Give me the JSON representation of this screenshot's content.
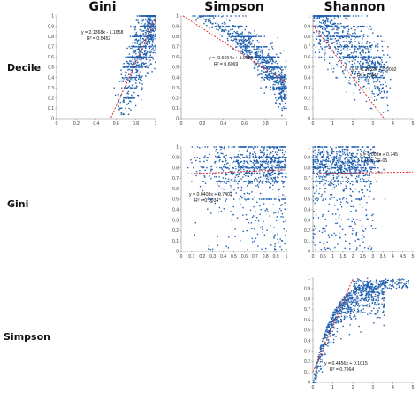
{
  "column_titles": [
    "Gini",
    "Simpson",
    "Shannon"
  ],
  "row_titles": [
    "Decile",
    "Gini",
    "Simpson"
  ],
  "colors": {
    "points": "#2060b0",
    "trend": "#e0302a",
    "axis": "#888888"
  },
  "chart_data": [
    {
      "id": "decile-vs-gini",
      "type": "scatter",
      "title": "",
      "xlabel": "",
      "ylabel": "",
      "xlim": [
        0,
        1
      ],
      "ylim": [
        0,
        1
      ],
      "xticks": [
        "0",
        "0.2",
        "0.4",
        "0.6",
        "0.8",
        "1"
      ],
      "yticks": [
        "0",
        "0.1",
        "0.2",
        "0.3",
        "0.4",
        "0.5",
        "0.6",
        "0.7",
        "0.8",
        "0.9",
        "1"
      ],
      "pattern": "gini",
      "trend": {
        "slope": 2.1368,
        "intercept": -1.1658
      },
      "equation": "y = 2.1368x - 1.1658",
      "r2": "R² = 0.5452",
      "grid": false
    },
    {
      "id": "decile-vs-simpson",
      "type": "scatter",
      "title": "",
      "xlabel": "",
      "ylabel": "",
      "xlim": [
        0,
        1
      ],
      "ylim": [
        0,
        1
      ],
      "xticks": [
        "0",
        "0.2",
        "0.4",
        "0.6",
        "0.8",
        "1"
      ],
      "yticks": [
        "0",
        "0.1",
        "0.2",
        "0.3",
        "0.4",
        "0.5",
        "0.6",
        "0.7",
        "0.8",
        "0.9",
        "1"
      ],
      "pattern": "simpson",
      "trend": {
        "slope": -0.6604,
        "intercept": 1.0125
      },
      "equation": "y = -0.6604x + 1.0125",
      "r2": "R² = 0.6069",
      "grid": false
    },
    {
      "id": "decile-vs-shannon",
      "type": "scatter",
      "title": "",
      "xlabel": "",
      "ylabel": "",
      "xlim": [
        0,
        5
      ],
      "ylim": [
        0,
        1
      ],
      "xticks": [
        "0",
        "1",
        "2",
        "3",
        "4",
        "5"
      ],
      "yticks": [
        "0",
        "0.1",
        "0.2",
        "0.3",
        "0.4",
        "0.5",
        "0.6",
        "0.7",
        "0.8",
        "0.9",
        "1"
      ],
      "pattern": "shannon",
      "trend": {
        "slope": -0.2552,
        "intercept": 0.9092
      },
      "equation": "y = -0.2552x + 0.9092",
      "r2": "R² = 0.447",
      "grid": false
    },
    {
      "id": "gini-vs-simpson",
      "type": "scatter",
      "title": "",
      "xlabel": "",
      "ylabel": "",
      "xlim": [
        0,
        1
      ],
      "ylim": [
        0,
        1
      ],
      "xticks": [
        "0",
        "0.1",
        "0.2",
        "0.3",
        "0.4",
        "0.5",
        "0.6",
        "0.7",
        "0.8",
        "0.9",
        "1"
      ],
      "yticks": [
        "0",
        "0.1",
        "0.2",
        "0.3",
        "0.4",
        "0.5",
        "0.6",
        "0.7",
        "0.8",
        "0.9",
        "1"
      ],
      "pattern": "flat_high",
      "trend": {
        "slope": 0.0408,
        "intercept": 0.7402
      },
      "equation": "y = 0.0408x + 0.7402",
      "r2": "R² = 0.0034",
      "grid": false
    },
    {
      "id": "gini-vs-shannon",
      "type": "scatter",
      "title": "",
      "xlabel": "",
      "ylabel": "",
      "xlim": [
        0,
        5
      ],
      "ylim": [
        0,
        1
      ],
      "xticks": [
        "0",
        "0.5",
        "1",
        "1.5",
        "2",
        "2.5",
        "3",
        "3.5",
        "4",
        "4.5",
        "5"
      ],
      "yticks": [
        "0",
        "0.1",
        "0.2",
        "0.3",
        "0.4",
        "0.5",
        "0.6",
        "0.7",
        "0.8",
        "0.9",
        "1"
      ],
      "pattern": "flat_left",
      "trend": {
        "slope": 0.003,
        "intercept": 0.745
      },
      "equation": "y = 0.003x + 0.745",
      "r2": "R² = 2E-05",
      "grid": false
    },
    {
      "id": "simpson-vs-shannon",
      "type": "scatter",
      "title": "",
      "xlabel": "",
      "ylabel": "",
      "xlim": [
        0,
        5
      ],
      "ylim": [
        0,
        1
      ],
      "xticks": [
        "0",
        "1",
        "2",
        "3",
        "4",
        "5"
      ],
      "yticks": [
        "0",
        "0.1",
        "0.2",
        "0.3",
        "0.4",
        "0.5",
        "0.6",
        "0.7",
        "0.8",
        "0.9",
        "1"
      ],
      "pattern": "saturating",
      "trend": {
        "slope": 0.4456,
        "intercept": 0.1015
      },
      "equation": "y = 0.4456x + 0.1015",
      "r2": "R² = 0.7964",
      "grid": false
    }
  ]
}
